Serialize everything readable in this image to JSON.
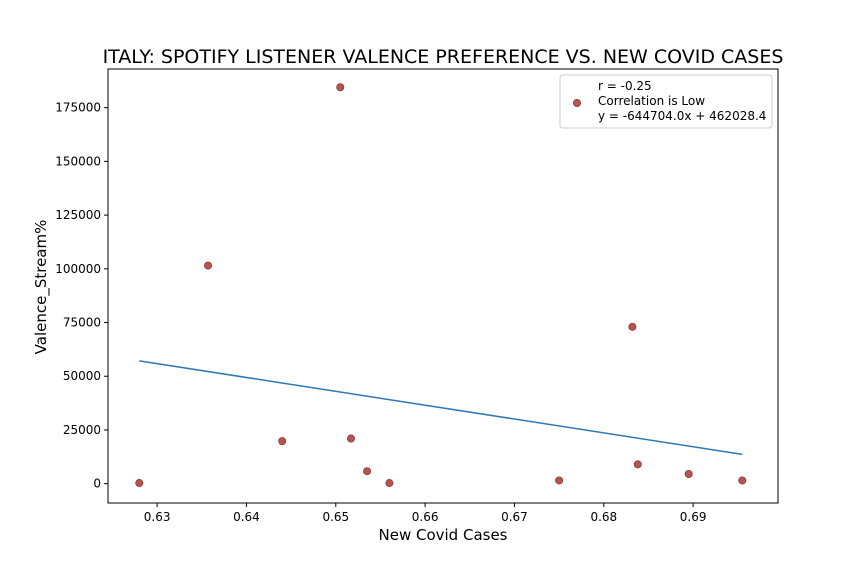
{
  "chart_data": {
    "type": "scatter",
    "title": "ITALY: SPOTIFY LISTENER VALENCE PREFERENCE VS. NEW COVID CASES",
    "xlabel": "New Covid Cases",
    "ylabel": "Valence_Stream%",
    "xlim": [
      0.6245,
      0.6995
    ],
    "ylim": [
      -9000,
      193000
    ],
    "xticks": [
      0.63,
      0.64,
      0.65,
      0.66,
      0.67,
      0.68,
      0.69
    ],
    "xtick_labels": [
      "0.63",
      "0.64",
      "0.65",
      "0.66",
      "0.67",
      "0.68",
      "0.69"
    ],
    "yticks": [
      0,
      25000,
      50000,
      75000,
      100000,
      125000,
      150000,
      175000
    ],
    "ytick_labels": [
      "0",
      "25000",
      "50000",
      "75000",
      "100000",
      "125000",
      "150000",
      "175000"
    ],
    "grid": false,
    "legend_position": "top-right",
    "series": [
      {
        "type": "scatter",
        "color": "#b85450",
        "edge_color": "#8b3a3a",
        "points": [
          {
            "x": 0.628,
            "y": 300
          },
          {
            "x": 0.6357,
            "y": 101500
          },
          {
            "x": 0.644,
            "y": 19800
          },
          {
            "x": 0.6505,
            "y": 184500
          },
          {
            "x": 0.6517,
            "y": 21000
          },
          {
            "x": 0.6535,
            "y": 5800
          },
          {
            "x": 0.656,
            "y": 300
          },
          {
            "x": 0.675,
            "y": 1500
          },
          {
            "x": 0.6832,
            "y": 73000
          },
          {
            "x": 0.6838,
            "y": 9000
          },
          {
            "x": 0.6895,
            "y": 4500
          },
          {
            "x": 0.6955,
            "y": 1500
          }
        ]
      },
      {
        "type": "line",
        "color": "#2f78b4",
        "slope": -644704.0,
        "intercept": 462028.4,
        "x_range": [
          0.628,
          0.6955
        ]
      }
    ],
    "legend": {
      "lines": [
        "r = -0.25",
        "Correlation is Low",
        "y = -644704.0x + 462028.4"
      ]
    }
  }
}
